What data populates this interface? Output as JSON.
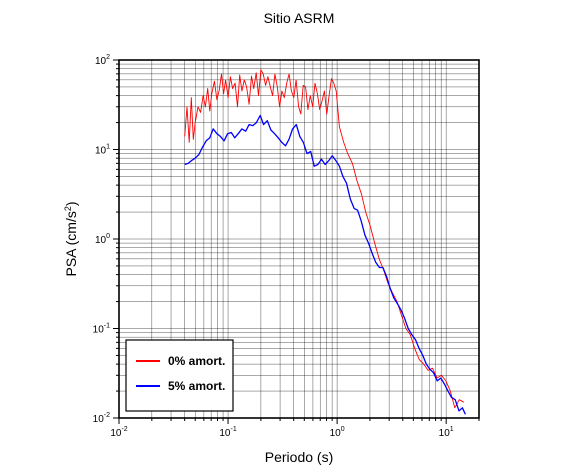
{
  "chart_data": {
    "type": "line",
    "title": "Sitio ASRM",
    "xlabel": "Periodo (s)",
    "ylabel_main": "PSA (cm/s",
    "ylabel_sup": "2",
    "ylabel_end": ")",
    "xscale": "log",
    "yscale": "log",
    "xlim": [
      0.01,
      20
    ],
    "ylim": [
      0.01,
      100
    ],
    "grid": true,
    "legend_position": "bottom-left",
    "x_ticks": [
      {
        "base": "10",
        "exp": "-2"
      },
      {
        "base": "10",
        "exp": "-1"
      },
      {
        "base": "10",
        "exp": "0"
      },
      {
        "base": "10",
        "exp": "1"
      }
    ],
    "y_ticks": [
      {
        "base": "10",
        "exp": "-2"
      },
      {
        "base": "10",
        "exp": "-1"
      },
      {
        "base": "10",
        "exp": "0"
      },
      {
        "base": "10",
        "exp": "1"
      },
      {
        "base": "10",
        "exp": "2"
      }
    ],
    "series": [
      {
        "name": "0% amort.",
        "color": "#ff0000",
        "x": [
          0.04,
          0.042,
          0.044,
          0.046,
          0.048,
          0.05,
          0.053,
          0.056,
          0.059,
          0.062,
          0.065,
          0.068,
          0.071,
          0.075,
          0.079,
          0.083,
          0.087,
          0.091,
          0.095,
          0.1,
          0.105,
          0.11,
          0.116,
          0.122,
          0.128,
          0.134,
          0.141,
          0.148,
          0.156,
          0.164,
          0.172,
          0.181,
          0.19,
          0.2,
          0.21,
          0.221,
          0.232,
          0.244,
          0.256,
          0.269,
          0.283,
          0.297,
          0.312,
          0.328,
          0.345,
          0.363,
          0.381,
          0.401,
          0.421,
          0.443,
          0.465,
          0.489,
          0.514,
          0.54,
          0.568,
          0.597,
          0.627,
          0.659,
          0.693,
          0.728,
          0.765,
          0.804,
          0.845,
          0.888,
          0.933,
          0.981,
          1.05,
          1.15,
          1.25,
          1.38,
          1.52,
          1.67,
          1.83,
          2.01,
          2.21,
          2.43,
          2.67,
          2.93,
          3.22,
          3.54,
          3.89,
          4.27,
          4.69,
          5.15,
          5.66,
          6.22,
          6.83,
          7.5,
          8.24,
          9.05,
          9.95,
          10.9,
          12.0,
          13.2,
          14.5
        ],
        "y": [
          14,
          30,
          12,
          38,
          13,
          20,
          30,
          26,
          40,
          30,
          48,
          27,
          42,
          58,
          36,
          46,
          70,
          42,
          60,
          38,
          65,
          48,
          55,
          30,
          68,
          45,
          60,
          50,
          32,
          66,
          48,
          72,
          40,
          78,
          70,
          52,
          65,
          50,
          40,
          70,
          50,
          30,
          45,
          38,
          55,
          70,
          45,
          38,
          60,
          30,
          25,
          52,
          50,
          28,
          40,
          30,
          55,
          42,
          28,
          35,
          45,
          25,
          40,
          62,
          55,
          45,
          18,
          12,
          9,
          7,
          4.5,
          3.2,
          2.0,
          1.4,
          0.9,
          0.6,
          0.45,
          0.32,
          0.25,
          0.2,
          0.14,
          0.1,
          0.085,
          0.06,
          0.045,
          0.04,
          0.034,
          0.036,
          0.028,
          0.03,
          0.026,
          0.02,
          0.013,
          0.016,
          0.015
        ]
      },
      {
        "name": "5% amort.",
        "color": "#0000ff",
        "x": [
          0.04,
          0.043,
          0.046,
          0.05,
          0.054,
          0.058,
          0.063,
          0.068,
          0.073,
          0.079,
          0.085,
          0.092,
          0.099,
          0.107,
          0.115,
          0.124,
          0.134,
          0.145,
          0.156,
          0.169,
          0.182,
          0.197,
          0.212,
          0.229,
          0.247,
          0.267,
          0.288,
          0.311,
          0.336,
          0.362,
          0.391,
          0.422,
          0.455,
          0.491,
          0.53,
          0.572,
          0.617,
          0.666,
          0.719,
          0.776,
          0.837,
          0.903,
          0.975,
          1.05,
          1.13,
          1.22,
          1.32,
          1.43,
          1.54,
          1.66,
          1.8,
          1.94,
          2.09,
          2.26,
          2.44,
          2.63,
          2.84,
          3.07,
          3.31,
          3.57,
          3.86,
          4.16,
          4.49,
          4.85,
          5.23,
          5.65,
          6.1,
          6.58,
          7.1,
          7.67,
          8.28,
          8.93,
          9.64,
          10.4,
          11.2,
          12.1,
          13.1,
          14.1,
          15.0
        ],
        "y": [
          6.8,
          7.0,
          7.5,
          8.0,
          8.8,
          10.5,
          12.5,
          13.5,
          17.0,
          15.0,
          14.0,
          12.5,
          15.0,
          15.5,
          13.5,
          15.0,
          17.0,
          16.0,
          19.0,
          18.5,
          20.0,
          24.0,
          19.0,
          21.0,
          16.5,
          15.0,
          13.5,
          12.0,
          11.0,
          13.0,
          17.0,
          19.0,
          14.0,
          12.0,
          9.0,
          9.5,
          6.5,
          6.8,
          7.8,
          6.8,
          7.5,
          8.5,
          7.5,
          6.5,
          5.0,
          4.2,
          2.8,
          2.2,
          2.1,
          1.6,
          1.1,
          0.9,
          0.7,
          0.55,
          0.48,
          0.48,
          0.38,
          0.28,
          0.22,
          0.19,
          0.16,
          0.13,
          0.1,
          0.085,
          0.075,
          0.06,
          0.05,
          0.04,
          0.035,
          0.032,
          0.026,
          0.028,
          0.024,
          0.02,
          0.017,
          0.016,
          0.012,
          0.013,
          0.011
        ]
      }
    ]
  }
}
